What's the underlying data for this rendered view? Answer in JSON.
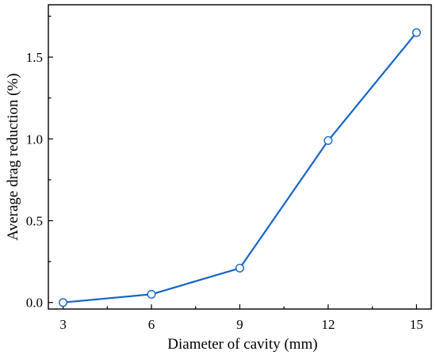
{
  "chart_data": {
    "type": "line",
    "xlabel": "Diameter of cavity (mm)",
    "ylabel": "Average drag reduction (%)",
    "x": [
      3,
      6,
      9,
      12,
      15
    ],
    "x_ticks": [
      "3",
      "6",
      "9",
      "12",
      "15"
    ],
    "y_ticks": [
      "0.0",
      "0.5",
      "1.0",
      "1.5"
    ],
    "y_tick_values": [
      0.0,
      0.5,
      1.0,
      1.5
    ],
    "xlim": [
      2.5,
      15.5
    ],
    "ylim": [
      -0.04,
      1.82
    ],
    "grid": false,
    "series": [
      {
        "values": [
          0.0,
          0.05,
          0.21,
          0.99,
          1.65
        ],
        "color": "#1565c8",
        "marker": "open-circle"
      }
    ]
  }
}
